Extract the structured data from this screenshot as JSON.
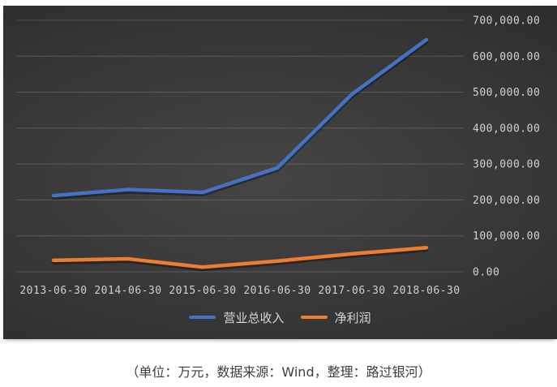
{
  "chart_panel": {
    "background_center": "#454545",
    "background_edge": "#1c1c1c",
    "axis_text_color": "#d2d2d2",
    "gridline_color": "rgba(255,255,255,0.17)"
  },
  "chart_data": {
    "type": "line",
    "title": "",
    "categories": [
      "2013-06-30",
      "2014-06-30",
      "2015-06-30",
      "2016-06-30",
      "2017-06-30",
      "2018-06-30"
    ],
    "series": [
      {
        "name": "营业总收入",
        "color": "#4472C4",
        "values": [
          212000,
          229000,
          221000,
          289000,
          494000,
          646000
        ]
      },
      {
        "name": "净利润",
        "color": "#ED7D31",
        "values": [
          32000,
          36000,
          13000,
          30000,
          50000,
          67000
        ]
      }
    ],
    "xlabel": "",
    "ylabel": "",
    "ylim": [
      0,
      700000
    ],
    "ytick_step": 100000,
    "ytick_labels": [
      "0.00",
      "100,000.00",
      "200,000.00",
      "300,000.00",
      "400,000.00",
      "500,000.00",
      "600,000.00",
      "700,000.00"
    ],
    "grid": true,
    "legend_position": "bottom"
  },
  "caption": {
    "text": "（单位：万元，数据来源：Wind，整理：路过银河）"
  }
}
